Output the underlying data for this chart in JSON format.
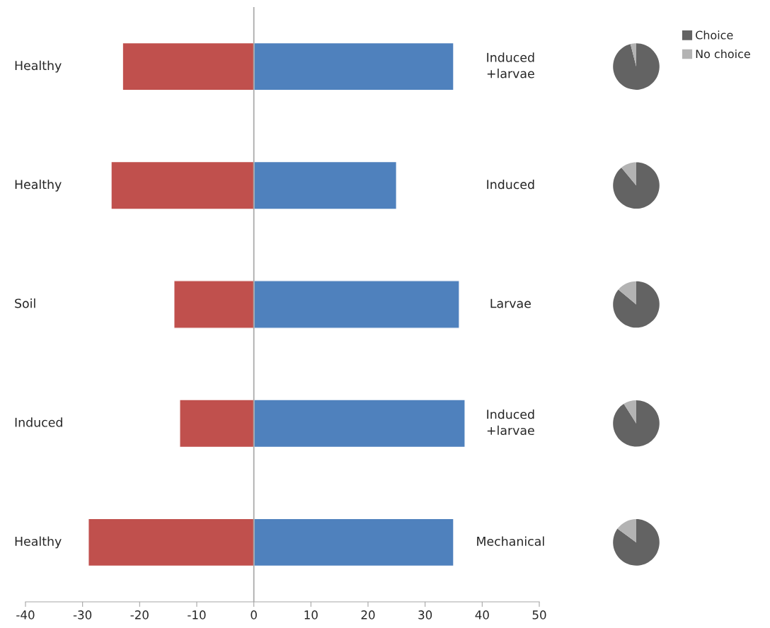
{
  "chart_data": [
    {
      "type": "bar",
      "orientation": "horizontal",
      "stacked": true,
      "categories": [
        "Healthy",
        "Healthy",
        "Soil",
        "Induced",
        "Healthy"
      ],
      "series": [
        {
          "color": "#c0504d",
          "values": [
            -23,
            -25,
            -14,
            -13,
            -29
          ]
        },
        {
          "color": "#4f81bd",
          "values": [
            35,
            25,
            36,
            37,
            35
          ]
        }
      ],
      "ref_lines": [
        {
          "axis": "x",
          "value": 0,
          "color": "#a6a6a6"
        }
      ],
      "xlim": [
        -40,
        50
      ],
      "xticks": [
        -40,
        -30,
        -20,
        -10,
        0,
        10,
        20,
        30,
        40,
        50
      ],
      "grid": false,
      "annotations": [
        "Induced\n+larvae",
        "Induced",
        "Larvae",
        "Induced\n+larvae",
        "Mechanical"
      ]
    },
    {
      "type": "pie",
      "categories": [
        "Choice",
        "No choice"
      ],
      "values": [
        96,
        4
      ],
      "colors": [
        "#636363",
        "#b3b3b3"
      ],
      "legend": "right"
    },
    {
      "type": "pie",
      "categories": [
        null,
        null
      ],
      "values": [
        89,
        11
      ],
      "colors": [
        "#636363",
        "#b3b3b3"
      ]
    },
    {
      "type": "pie",
      "categories": [
        null,
        null
      ],
      "values": [
        86,
        14
      ],
      "colors": [
        "#636363",
        "#b3b3b3"
      ]
    },
    {
      "type": "pie",
      "categories": [
        null,
        null
      ],
      "values": [
        91,
        9
      ],
      "colors": [
        "#636363",
        "#b3b3b3"
      ]
    },
    {
      "type": "pie",
      "categories": [
        null,
        null
      ],
      "values": [
        85,
        15
      ],
      "colors": [
        "#636363",
        "#b3b3b3"
      ]
    }
  ]
}
